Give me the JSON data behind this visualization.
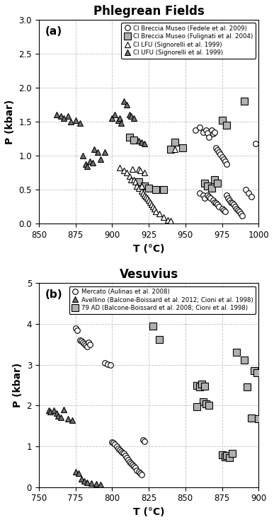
{
  "panel_a": {
    "title": "Phlegrean Fields",
    "xlabel": "T (°C)",
    "ylabel": "P (kbar)",
    "xlim": [
      850,
      1000
    ],
    "ylim": [
      0.0,
      3.0
    ],
    "xticks": [
      850,
      875,
      900,
      925,
      950,
      975,
      1000
    ],
    "yticks": [
      0.0,
      0.5,
      1.0,
      1.5,
      2.0,
      2.5,
      3.0
    ],
    "label": "(a)",
    "series": [
      {
        "name": "CI Breccia Museo (Fedele et al. 2009)",
        "marker": "o",
        "facecolor": "white",
        "edgecolor": "black",
        "markersize": 5.5,
        "T": [
          957,
          960,
          962,
          964,
          965,
          966,
          968,
          969,
          970,
          971,
          972,
          973,
          974,
          975,
          976,
          977,
          978,
          960,
          962,
          963,
          965,
          966,
          967,
          969,
          970,
          971,
          972,
          973,
          975,
          976,
          977,
          978,
          979,
          980,
          981,
          982,
          983,
          984,
          985,
          986,
          987,
          988,
          989,
          991,
          993,
          995,
          998
        ],
        "P": [
          1.38,
          1.42,
          1.35,
          1.38,
          1.33,
          1.27,
          1.38,
          1.32,
          1.35,
          1.12,
          1.08,
          1.05,
          1.02,
          0.98,
          0.95,
          0.92,
          0.88,
          0.45,
          0.42,
          0.38,
          0.42,
          0.4,
          0.38,
          0.35,
          0.32,
          0.3,
          0.28,
          0.25,
          0.22,
          0.2,
          0.18,
          0.42,
          0.38,
          0.35,
          0.32,
          0.3,
          0.28,
          0.25,
          0.22,
          0.2,
          0.18,
          0.15,
          0.12,
          0.5,
          0.45,
          0.4,
          1.18
        ]
      },
      {
        "name": "CI Breccia Museo (Fulignati et al. 2004)",
        "marker": "s",
        "facecolor": "#b0b0b0",
        "edgecolor": "black",
        "markersize": 7,
        "T": [
          912,
          915,
          918,
          922,
          925,
          930,
          935,
          940,
          943,
          948,
          963,
          965,
          968,
          970,
          972,
          975,
          978,
          990
        ],
        "P": [
          1.27,
          1.23,
          0.62,
          0.55,
          0.52,
          0.5,
          0.5,
          1.1,
          1.2,
          1.12,
          0.6,
          0.55,
          0.52,
          0.65,
          0.6,
          1.52,
          1.45,
          1.8
        ]
      },
      {
        "name": "CI LFU (Signorelli et al. 1999)",
        "marker": "^",
        "facecolor": "white",
        "edgecolor": "black",
        "markersize": 6,
        "T": [
          905,
          908,
          910,
          912,
          913,
          914,
          915,
          916,
          917,
          918,
          918,
          919,
          920,
          920,
          921,
          922,
          922,
          923,
          924,
          925,
          926,
          927,
          928,
          929,
          930,
          932,
          935,
          938,
          940,
          943
        ],
        "P": [
          0.82,
          0.78,
          0.75,
          0.7,
          0.65,
          0.8,
          0.65,
          0.62,
          0.55,
          0.52,
          0.8,
          0.78,
          0.48,
          0.55,
          0.45,
          0.42,
          0.75,
          0.4,
          0.38,
          0.35,
          0.32,
          0.28,
          0.25,
          0.22,
          0.18,
          0.15,
          0.1,
          0.06,
          0.04,
          1.1
        ]
      },
      {
        "name": "CI UFU (Signorelli et al. 1999)",
        "marker": "^",
        "facecolor": "#707070",
        "edgecolor": "black",
        "markersize": 6,
        "T": [
          862,
          865,
          867,
          870,
          872,
          875,
          878,
          880,
          882,
          883,
          885,
          887,
          888,
          890,
          892,
          895,
          900,
          902,
          904,
          905,
          906,
          908,
          910,
          912,
          913,
          915,
          918,
          920,
          922
        ],
        "P": [
          1.6,
          1.58,
          1.55,
          1.58,
          1.5,
          1.52,
          1.48,
          1.0,
          0.88,
          0.85,
          0.92,
          0.9,
          1.1,
          1.05,
          0.95,
          1.05,
          1.55,
          1.6,
          1.52,
          1.55,
          1.48,
          1.8,
          1.75,
          1.6,
          1.58,
          1.55,
          1.22,
          1.2,
          1.18
        ]
      }
    ]
  },
  "panel_b": {
    "title": "Vesuvius",
    "xlabel": "T (°C)",
    "ylabel": "P (kbar)",
    "xlim": [
      750,
      900
    ],
    "ylim": [
      0.0,
      5.0
    ],
    "xticks": [
      750,
      775,
      800,
      825,
      850,
      875,
      900
    ],
    "yticks": [
      0.0,
      1.0,
      2.0,
      3.0,
      4.0,
      5.0
    ],
    "label": "(b)",
    "series": [
      {
        "name": "Mercato (Aulinas et al. 2008)",
        "marker": "o",
        "facecolor": "white",
        "edgecolor": "black",
        "markersize": 5.5,
        "T": [
          775,
          776,
          778,
          779,
          780,
          781,
          782,
          783,
          784,
          785,
          795,
          797,
          799,
          800,
          801,
          802,
          803,
          804,
          805,
          806,
          807,
          808,
          809,
          810,
          811,
          812,
          813,
          814,
          815,
          816,
          817,
          818,
          819,
          820,
          821,
          822
        ],
        "P": [
          3.9,
          3.85,
          3.6,
          3.58,
          3.55,
          3.52,
          3.48,
          3.45,
          3.55,
          3.5,
          3.05,
          3.02,
          3.0,
          1.1,
          1.08,
          1.05,
          1.0,
          0.95,
          0.92,
          0.88,
          0.85,
          0.82,
          0.78,
          0.72,
          0.68,
          0.62,
          0.58,
          0.55,
          0.52,
          0.48,
          0.42,
          0.38,
          0.34,
          0.3,
          1.15,
          1.12
        ]
      },
      {
        "name": "Avellino (Balcone-Boissard et al. 2012; Cioni et al. 1998)",
        "marker": "^",
        "facecolor": "#707070",
        "edgecolor": "black",
        "markersize": 6,
        "T": [
          757,
          758,
          760,
          762,
          763,
          765,
          767,
          770,
          773,
          775,
          777,
          779,
          781,
          783,
          786,
          789,
          792
        ],
        "P": [
          1.88,
          1.85,
          1.88,
          1.82,
          1.75,
          1.72,
          1.9,
          1.68,
          1.65,
          0.38,
          0.35,
          0.2,
          0.15,
          0.12,
          0.1,
          0.08,
          0.06
        ]
      },
      {
        "name": "79 AD (Balcone-Boissard et al. 2008; Cioni et al. 1998)",
        "marker": "s",
        "facecolor": "#b0b0b0",
        "edgecolor": "black",
        "markersize": 7,
        "T": [
          828,
          832,
          858,
          860,
          862,
          864,
          866,
          858,
          861,
          863,
          875,
          877,
          878,
          880,
          882,
          885,
          890,
          892,
          895,
          897,
          899,
          900
        ],
        "P": [
          3.95,
          3.62,
          2.5,
          2.45,
          2.1,
          2.05,
          2.0,
          1.98,
          2.52,
          2.48,
          0.8,
          0.75,
          0.78,
          0.72,
          0.82,
          3.3,
          3.12,
          2.45,
          1.7,
          2.85,
          2.8,
          1.68
        ]
      }
    ]
  }
}
